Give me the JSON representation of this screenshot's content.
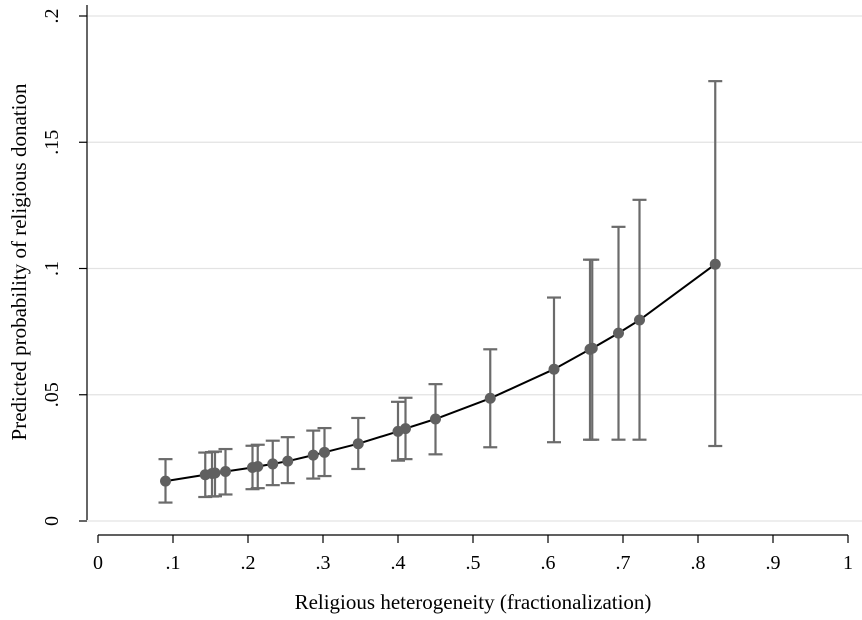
{
  "chart_data": {
    "type": "scatter",
    "title": "",
    "xlabel": "Religious heterogeneity (fractionalization)",
    "ylabel": "Predicted probability of religious donation",
    "xlim": [
      0,
      1
    ],
    "ylim": [
      0,
      0.2
    ],
    "xticks": [
      0,
      0.1,
      0.2,
      0.3,
      0.4,
      0.5,
      0.6,
      0.7,
      0.8,
      0.9,
      1
    ],
    "xtick_labels": [
      "0",
      ".1",
      ".2",
      ".3",
      ".4",
      ".5",
      ".6",
      ".7",
      ".8",
      ".9",
      "1"
    ],
    "yticks": [
      0,
      0.05,
      0.1,
      0.15,
      0.2
    ],
    "ytick_labels": [
      "0",
      ".05",
      ".1",
      ".15",
      ".2"
    ],
    "grid": "horizontal",
    "series": [
      {
        "x": [
          0.09,
          0.143,
          0.152,
          0.156,
          0.17,
          0.206,
          0.213,
          0.233,
          0.253,
          0.287,
          0.302,
          0.347,
          0.4,
          0.41,
          0.45,
          0.523,
          0.608,
          0.656,
          0.659,
          0.694,
          0.722,
          0.823
        ],
        "y": [
          0.0158,
          0.0183,
          0.0188,
          0.019,
          0.0196,
          0.0212,
          0.0216,
          0.0226,
          0.0237,
          0.0261,
          0.0272,
          0.0306,
          0.0355,
          0.0366,
          0.0404,
          0.0486,
          0.0601,
          0.068,
          0.0684,
          0.0744,
          0.0796,
          0.1017
        ],
        "lower": [
          0.0073,
          0.0095,
          0.0097,
          0.0098,
          0.0105,
          0.0126,
          0.013,
          0.0142,
          0.015,
          0.0168,
          0.0178,
          0.0206,
          0.0239,
          0.0245,
          0.0264,
          0.0292,
          0.0312,
          0.0322,
          0.0322,
          0.0322,
          0.0322,
          0.0297
        ],
        "upper": [
          0.0245,
          0.0271,
          0.0273,
          0.0275,
          0.0285,
          0.0298,
          0.0302,
          0.0318,
          0.0332,
          0.0358,
          0.0368,
          0.0408,
          0.0472,
          0.0488,
          0.0542,
          0.068,
          0.0885,
          0.1035,
          0.1035,
          0.1165,
          0.1272,
          0.1742
        ]
      }
    ]
  },
  "colors": {
    "markers": "#606060",
    "error_bars": "#6b6b6b",
    "line": "#000000",
    "grid": "#e3e3e3"
  }
}
